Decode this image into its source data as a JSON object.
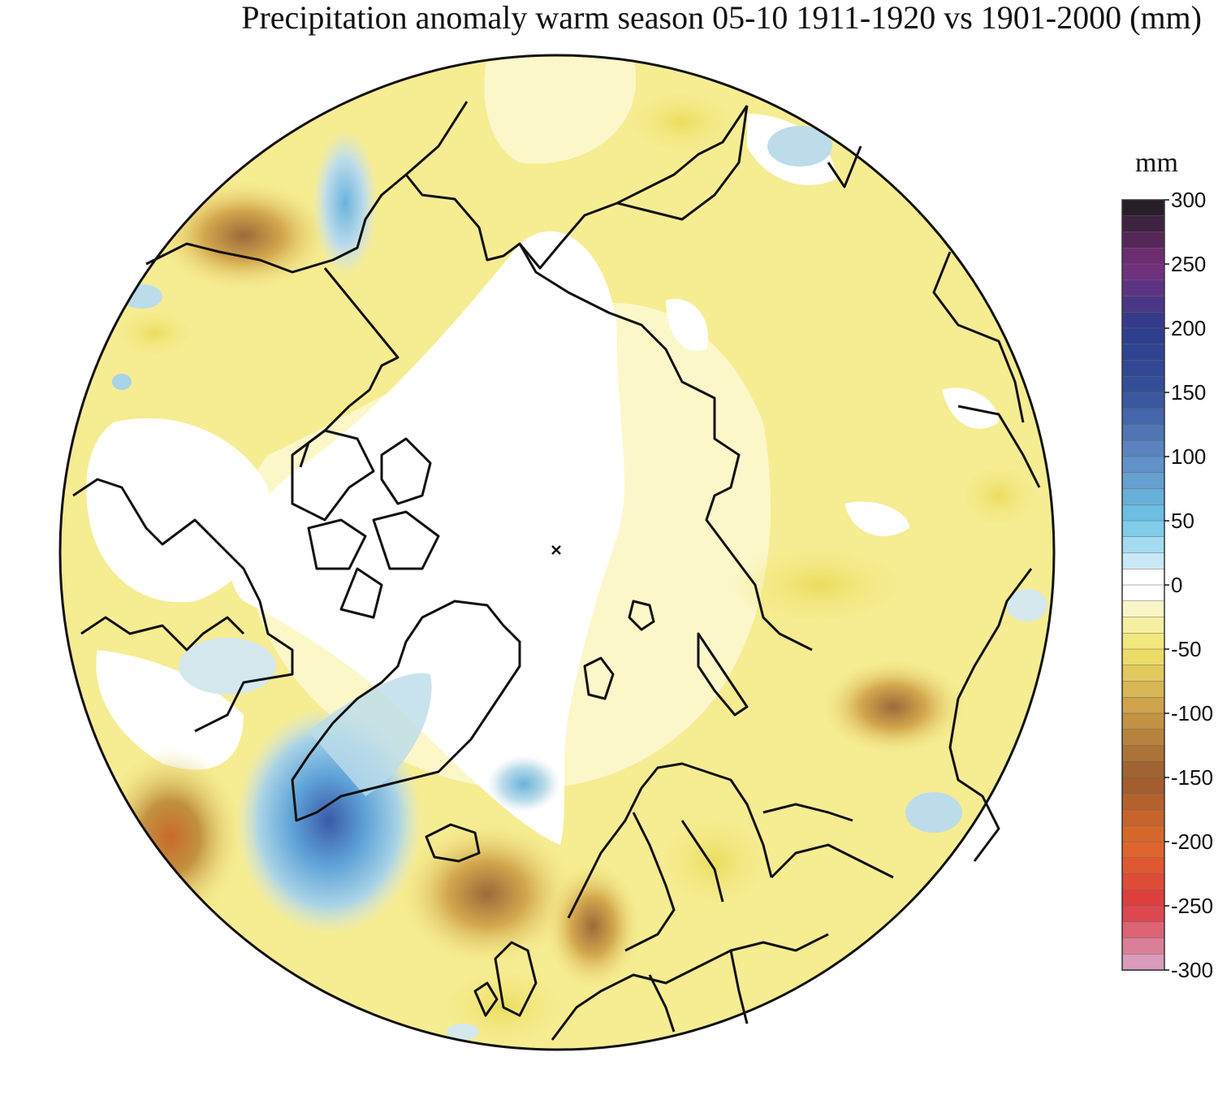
{
  "title": "Precipitation anomaly warm season 05-10 1911-1920 vs 1901-2000 (mm)",
  "colorbar": {
    "unit": "mm",
    "tick_labels": [
      "300",
      "250",
      "200",
      "150",
      "100",
      "50",
      "0",
      "-50",
      "-100",
      "-150",
      "-200",
      "-250",
      "-300"
    ],
    "range": [
      -300,
      300
    ],
    "colors": {
      "p300": "#1b1b1e",
      "p250": "#7a2f7d",
      "p200": "#2c3c8c",
      "p150": "#34519a",
      "p100": "#5f8ac4",
      "p50": "#6ec5e6",
      "p0": "#ffffff",
      "n50": "#f0e56a",
      "n100": "#c89a48",
      "n150": "#9a5b2e",
      "n200": "#e06a2a",
      "n250": "#dd3a3e",
      "n300": "#d9a9cf"
    }
  },
  "map": {
    "projection": "north polar stereographic",
    "colors": {
      "land_line": "#111111",
      "ocean_neutral": "#ffffff",
      "dry_light": "#fbf7c9",
      "dry": "#f4ea86",
      "dry_strong": "#e3c25a",
      "wet_light": "#d4e8ee",
      "wet": "#79b9dd",
      "wet_strong": "#4c78b8"
    }
  }
}
